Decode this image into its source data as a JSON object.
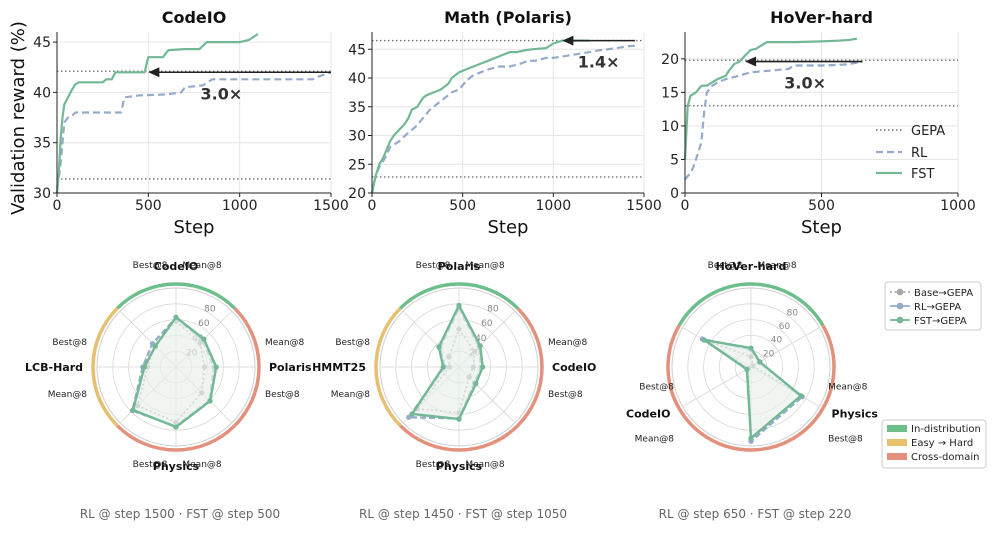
{
  "line_ylabel": "Validation reward (%)",
  "line_legend": [
    "GEPA",
    "RL",
    "FST"
  ],
  "radar_legend": [
    "Base→GEPA",
    "RL→GEPA",
    "FST→GEPA"
  ],
  "band_legend": [
    "In-distribution",
    "Easy → Hard",
    "Cross-domain"
  ],
  "colors": {
    "fst": "#72b894",
    "rl": "#95abcc",
    "gepa": "#707070",
    "base": "#a8a8a8",
    "in_distribution": "#6cbf8a",
    "easy_hard": "#e6c06e",
    "cross_domain": "#e3907c",
    "arrow": "#222222",
    "fill": "#e8efe9"
  },
  "chart_data": [
    {
      "type": "line",
      "title": "CodeIO",
      "xlabel": "Step",
      "ylabel": "Validation reward (%)",
      "xlim": [
        0,
        1500
      ],
      "ylim": [
        30,
        46
      ],
      "xticks": [
        0,
        500,
        1000,
        1500
      ],
      "yticks": [
        30,
        35,
        40,
        45
      ],
      "grid": true,
      "annotation": "3.0×",
      "arrow": {
        "y": 42,
        "x_from": 1500,
        "x_to": 500
      },
      "series": [
        {
          "name": "GEPA",
          "style": "dotted",
          "x": [
            0,
            1500
          ],
          "y": [
            31.4,
            31.4
          ]
        },
        {
          "name": "GEPA",
          "style": "dotted",
          "x": [
            0,
            1500
          ],
          "y": [
            42.1,
            42.1
          ]
        },
        {
          "name": "RL",
          "style": "dashed",
          "x": [
            0,
            10,
            20,
            40,
            60,
            80,
            100,
            200,
            250,
            350,
            370,
            450,
            600,
            680,
            700,
            800,
            850,
            1400,
            1450,
            1500
          ],
          "y": [
            30.5,
            31.5,
            33,
            37,
            37.5,
            37.6,
            38,
            38,
            38,
            38,
            39.5,
            39.7,
            39.8,
            40,
            40.5,
            40.7,
            41.3,
            41.3,
            41.7,
            42
          ]
        },
        {
          "name": "FST",
          "style": "solid",
          "x": [
            0,
            10,
            20,
            30,
            40,
            60,
            80,
            100,
            120,
            150,
            200,
            250,
            270,
            300,
            320,
            480,
            490,
            500,
            580,
            610,
            700,
            780,
            820,
            1000,
            1050,
            1100
          ],
          "y": [
            30,
            32,
            35.5,
            37.5,
            38.8,
            39.5,
            40.2,
            40.8,
            41,
            41,
            41,
            41,
            41.3,
            41.3,
            42,
            42,
            42.8,
            43.5,
            43.5,
            44.2,
            44.3,
            44.3,
            45,
            45,
            45.2,
            45.8
          ]
        }
      ]
    },
    {
      "type": "line",
      "title": "Math (Polaris)",
      "xlabel": "Step",
      "ylabel": "",
      "xlim": [
        0,
        1500
      ],
      "ylim": [
        20,
        48
      ],
      "xticks": [
        0,
        500,
        1000,
        1500
      ],
      "yticks": [
        20,
        25,
        30,
        35,
        40,
        45
      ],
      "grid": true,
      "annotation": "1.4×",
      "arrow": {
        "y": 46.5,
        "x_from": 1450,
        "x_to": 1050
      },
      "series": [
        {
          "name": "GEPA",
          "style": "dotted",
          "x": [
            0,
            1500
          ],
          "y": [
            22.8,
            22.8
          ]
        },
        {
          "name": "GEPA",
          "style": "dotted",
          "x": [
            0,
            1500
          ],
          "y": [
            46.5,
            46.5
          ]
        },
        {
          "name": "RL",
          "style": "dashed",
          "x": [
            0,
            20,
            40,
            60,
            80,
            100,
            150,
            200,
            240,
            280,
            320,
            380,
            440,
            480,
            520,
            560,
            600,
            640,
            700,
            760,
            820,
            860,
            900,
            960,
            1000,
            1100,
            1200,
            1250,
            1300,
            1350,
            1400,
            1450
          ],
          "y": [
            20,
            23,
            24.5,
            25.5,
            26.5,
            28,
            29,
            30.5,
            31.5,
            33,
            34.5,
            36,
            37.5,
            38,
            39.5,
            40.5,
            41,
            41.5,
            42,
            42,
            42.5,
            43,
            43,
            43.5,
            43.5,
            44,
            44.5,
            44.8,
            45,
            45.2,
            45.5,
            45.6
          ]
        },
        {
          "name": "FST",
          "style": "solid",
          "x": [
            0,
            20,
            40,
            60,
            80,
            100,
            120,
            150,
            180,
            200,
            220,
            250,
            280,
            300,
            340,
            380,
            420,
            440,
            480,
            520,
            560,
            600,
            640,
            680,
            720,
            760,
            800,
            840,
            880,
            960,
            1000,
            1050,
            1100,
            1200
          ],
          "y": [
            20,
            23,
            25,
            26,
            27.5,
            29,
            30,
            31,
            32,
            33,
            34.5,
            35,
            36.5,
            37,
            37.5,
            38,
            39,
            40,
            41,
            41.5,
            42,
            42.5,
            43,
            43.5,
            44,
            44.5,
            44.5,
            44.8,
            45,
            45.2,
            46,
            46.5,
            46.5,
            46.5
          ]
        }
      ]
    },
    {
      "type": "line",
      "title": "HoVer-hard",
      "xlabel": "Step",
      "ylabel": "",
      "xlim": [
        0,
        1000
      ],
      "ylim": [
        0,
        24
      ],
      "xticks": [
        0,
        500,
        1000
      ],
      "yticks": [
        0,
        5,
        10,
        15,
        20
      ],
      "grid": true,
      "annotation": "3.0×",
      "arrow": {
        "y": 19.6,
        "x_from": 650,
        "x_to": 220
      },
      "legend_position": "lower-right",
      "series": [
        {
          "name": "GEPA",
          "style": "dotted",
          "x": [
            0,
            1000
          ],
          "y": [
            13,
            13
          ]
        },
        {
          "name": "GEPA",
          "style": "dotted",
          "x": [
            0,
            1000
          ],
          "y": [
            19.8,
            19.8
          ]
        },
        {
          "name": "RL",
          "style": "dashed",
          "x": [
            0,
            10,
            20,
            30,
            40,
            50,
            60,
            70,
            80,
            90,
            100,
            120,
            150,
            200,
            240,
            300,
            380,
            400,
            500,
            560,
            600,
            650
          ],
          "y": [
            2,
            2.5,
            3,
            3.8,
            5,
            6.2,
            7.6,
            12,
            15,
            15.5,
            16,
            16.5,
            17,
            17.5,
            18,
            18.2,
            18.5,
            19,
            19,
            19.1,
            19.2,
            19.6
          ]
        },
        {
          "name": "FST",
          "style": "solid",
          "x": [
            0,
            10,
            20,
            40,
            60,
            80,
            100,
            120,
            150,
            160,
            180,
            200,
            220,
            240,
            260,
            280,
            300,
            350,
            400,
            500,
            560,
            600,
            630
          ],
          "y": [
            5,
            13,
            14.5,
            15,
            16,
            16,
            16.5,
            17,
            17.5,
            18.2,
            19.2,
            19.6,
            20.5,
            21.3,
            21.5,
            22,
            22.5,
            22.5,
            22.5,
            22.6,
            22.7,
            22.8,
            23
          ]
        }
      ]
    },
    {
      "type": "radar",
      "title": "",
      "axes": [
        "CodeIO",
        "Polaris",
        "Physics",
        "LCB-Hard"
      ],
      "sub_labels": [
        "Best@8",
        "Mean@8"
      ],
      "rticks": [
        20,
        40,
        60,
        80
      ],
      "rlim": [
        0,
        100
      ],
      "bands": [
        "In-distribution",
        "Cross-domain",
        "Cross-domain",
        "Easy → Hard"
      ],
      "footer": "RL @ step 1500 · FST @ step 500",
      "series": [
        {
          "name": "Base→GEPA",
          "values": [
            58,
            43,
            36,
            46,
            70,
            69,
            36,
            38
          ]
        },
        {
          "name": "RL→GEPA",
          "values": [
            62,
            48,
            48,
            60,
            75,
            78,
            42,
            42
          ]
        },
        {
          "name": "FST→GEPA",
          "values": [
            63,
            50,
            51,
            61,
            76,
            77,
            40,
            37
          ]
        }
      ]
    },
    {
      "type": "radar",
      "title": "",
      "axes": [
        "Polaris",
        "CodeIO",
        "Physics",
        "HMMT25"
      ],
      "sub_labels": [
        "Best@8",
        "Mean@8"
      ],
      "rticks": [
        20,
        40,
        60,
        80
      ],
      "rlim": [
        0,
        100
      ],
      "bands": [
        "In-distribution",
        "Cross-domain",
        "Cross-domain",
        "Easy → Hard"
      ],
      "footer": "RL @ step 1450 · FST @ step 1050",
      "series": [
        {
          "name": "Base→GEPA",
          "values": [
            48,
            28,
            18,
            18,
            58,
            75,
            12,
            18
          ]
        },
        {
          "name": "RL→GEPA",
          "values": [
            75,
            36,
            28,
            28,
            65,
            90,
            18,
            34
          ]
        },
        {
          "name": "FST→GEPA",
          "values": [
            78,
            38,
            30,
            30,
            66,
            84,
            20,
            36
          ]
        }
      ]
    },
    {
      "type": "radar",
      "title": "",
      "axes": [
        "HoVer-hard",
        "Physics",
        "CodeIO"
      ],
      "sub_labels": [
        "Best@8",
        "Mean@8"
      ],
      "rticks": [
        20,
        40,
        60,
        80
      ],
      "rlim": [
        0,
        100
      ],
      "bands": [
        "In-distribution",
        "Cross-domain",
        "Cross-domain"
      ],
      "footer": "RL @ step 650 · FST @ step 220",
      "series": [
        {
          "name": "Base→GEPA",
          "values": [
            13,
            3,
            73,
            92,
            4,
            69
          ]
        },
        {
          "name": "RL→GEPA",
          "values": [
            22,
            12,
            75,
            94,
            5,
            71
          ]
        },
        {
          "name": "FST→GEPA",
          "values": [
            24,
            13,
            73,
            90,
            6,
            68
          ]
        }
      ]
    }
  ]
}
